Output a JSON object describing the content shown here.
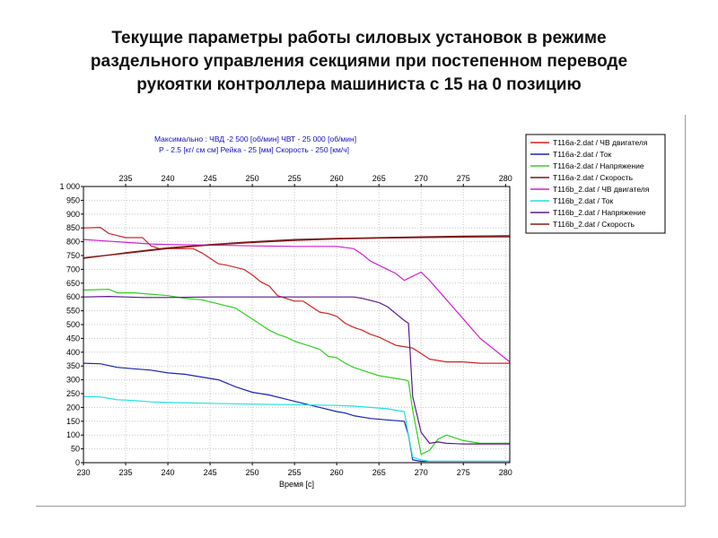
{
  "slide": {
    "title_lines": [
      "Текущие параметры работы силовых установок в режиме",
      "раздельного управления секциями при постепенном переводе",
      "рукоятки контроллера машиниста с 15 на 0 позицию"
    ]
  },
  "annotation": {
    "line1": "Максимально :   ЧВД -2 500  [об/мин]    ЧВТ - 25 000 [об/мин]",
    "line2": "Р - 2.5 [кг/ см см]   Рейка - 25 [мм]  Скорость - 250 [км/ч]"
  },
  "chart_data": {
    "type": "line",
    "xlabel": "Время [с]",
    "ylabel": "",
    "xlim": [
      230,
      280.5
    ],
    "ylim": [
      0,
      1000
    ],
    "x_ticks": [
      230,
      235,
      240,
      245,
      250,
      255,
      260,
      265,
      270,
      275,
      280
    ],
    "x2_ticks": [
      235,
      240,
      245,
      250,
      255,
      260,
      265,
      270,
      275,
      280
    ],
    "y_ticks": [
      0,
      50,
      100,
      150,
      200,
      250,
      300,
      350,
      400,
      450,
      500,
      550,
      600,
      650,
      700,
      750,
      800,
      850,
      900,
      950,
      1000
    ],
    "y_tick_labels": [
      "0",
      "50",
      "100",
      "150",
      "200",
      "250",
      "300",
      "350",
      "400",
      "450",
      "500",
      "550",
      "600",
      "650",
      "700",
      "750",
      "800",
      "850",
      "900",
      "950",
      "1 000"
    ],
    "grid": true,
    "legend_position": "right",
    "series": [
      {
        "name": "T116a-2.dat / ЧВ двигателя",
        "color": "#d42020",
        "x": [
          230,
          232,
          233,
          235,
          237,
          238,
          239,
          240,
          243,
          244,
          246,
          247,
          249,
          250,
          251,
          252,
          253,
          255,
          256,
          257,
          258,
          259,
          260,
          261,
          262,
          263,
          264,
          265,
          266,
          267,
          268,
          269,
          270,
          271,
          273,
          275,
          277,
          280.5
        ],
        "y": [
          850,
          852,
          830,
          815,
          815,
          785,
          775,
          775,
          775,
          760,
          720,
          715,
          700,
          680,
          655,
          640,
          605,
          585,
          585,
          565,
          545,
          540,
          530,
          505,
          490,
          480,
          465,
          455,
          440,
          425,
          420,
          415,
          395,
          375,
          365,
          365,
          360,
          360
        ]
      },
      {
        "name": "T116a-2.dat / Ток",
        "color": "#1a24b4",
        "x": [
          230,
          232,
          234,
          236,
          238,
          240,
          242,
          244,
          246,
          248,
          250,
          252,
          254,
          256,
          258,
          260,
          261,
          262,
          264,
          266,
          268,
          268.5,
          269,
          270,
          272,
          275,
          280.5
        ],
        "y": [
          360,
          358,
          345,
          340,
          335,
          325,
          320,
          310,
          300,
          275,
          255,
          245,
          230,
          215,
          200,
          185,
          180,
          170,
          160,
          155,
          150,
          100,
          10,
          5,
          5,
          5,
          5
        ]
      },
      {
        "name": "T116a-2.dat / Напряжение",
        "color": "#2fd020",
        "x": [
          230,
          233,
          234,
          236,
          238,
          240,
          242,
          244,
          246,
          248,
          249,
          250,
          251,
          252,
          253,
          254,
          255,
          256,
          257,
          258,
          259,
          260,
          261,
          262,
          263,
          264,
          265,
          266,
          267,
          268,
          268.5,
          269,
          270,
          271,
          272,
          273,
          275,
          277,
          280.5
        ],
        "y": [
          625,
          628,
          615,
          615,
          610,
          605,
          595,
          590,
          575,
          560,
          540,
          520,
          500,
          480,
          465,
          455,
          440,
          430,
          420,
          410,
          385,
          380,
          360,
          345,
          335,
          325,
          315,
          310,
          305,
          300,
          295,
          190,
          30,
          45,
          85,
          100,
          80,
          70,
          70
        ]
      },
      {
        "name": "T116a-2.dat / Скорость",
        "color": "#6e1a1a",
        "x": [
          230,
          235,
          240,
          245,
          250,
          255,
          260,
          265,
          270,
          275,
          280.5
        ],
        "y": [
          740,
          760,
          778,
          790,
          800,
          808,
          812,
          815,
          818,
          820,
          822
        ]
      },
      {
        "name": "T116b_2.dat / ЧВ двигателя",
        "color": "#d020d0",
        "x": [
          230,
          238,
          240,
          245,
          250,
          255,
          260,
          262,
          263,
          264,
          266,
          267,
          268,
          269,
          270,
          271,
          273,
          275,
          277,
          280.5
        ],
        "y": [
          808,
          792,
          790,
          788,
          785,
          783,
          783,
          775,
          755,
          730,
          700,
          685,
          660,
          675,
          690,
          660,
          590,
          520,
          450,
          365
        ]
      },
      {
        "name": "T116b_2.dat / Ток",
        "color": "#20e0e0",
        "x": [
          230,
          232,
          234,
          236,
          238,
          240,
          245,
          250,
          255,
          260,
          262,
          264,
          266,
          267,
          268,
          268.5,
          269,
          270,
          271,
          275,
          280.5
        ],
        "y": [
          240,
          238,
          228,
          225,
          220,
          218,
          215,
          212,
          210,
          207,
          205,
          200,
          195,
          190,
          185,
          100,
          20,
          10,
          5,
          5,
          5
        ]
      },
      {
        "name": "T116b_2.dat / Напряжение",
        "color": "#5a1a8c",
        "x": [
          230,
          233,
          235,
          237,
          240,
          245,
          250,
          255,
          260,
          262,
          263,
          265,
          266,
          267,
          268,
          268.5,
          269,
          270,
          271,
          272,
          273,
          275,
          277,
          280.5
        ],
        "y": [
          600,
          602,
          600,
          598,
          598,
          600,
          600,
          600,
          600,
          600,
          595,
          580,
          565,
          540,
          515,
          505,
          240,
          110,
          70,
          75,
          70,
          68,
          68,
          68
        ]
      },
      {
        "name": "T116b_2.dat / Скорость",
        "color": "#8a1a1a",
        "x": [
          230,
          235,
          240,
          245,
          250,
          255,
          260,
          265,
          270,
          275,
          280.5
        ],
        "y": [
          742,
          758,
          775,
          788,
          797,
          805,
          810,
          813,
          815,
          817,
          818
        ]
      }
    ]
  }
}
